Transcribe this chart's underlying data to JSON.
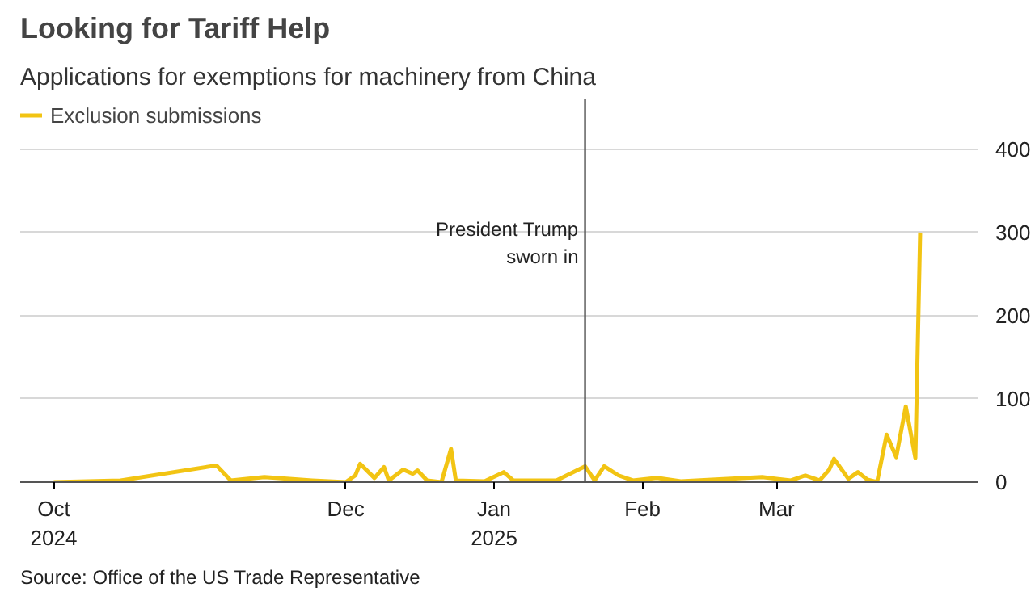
{
  "chart_data": {
    "type": "line",
    "title": "Looking for Tariff Help",
    "subtitle": "Applications for exemptions for machinery from China",
    "x": [
      "2024-10-01",
      "2024-10-15",
      "2024-11-04",
      "2024-11-07",
      "2024-11-14",
      "2024-11-24",
      "2024-12-01",
      "2024-12-03",
      "2024-12-04",
      "2024-12-07",
      "2024-12-09",
      "2024-12-10",
      "2024-12-13",
      "2024-12-15",
      "2024-12-16",
      "2024-12-18",
      "2024-12-21",
      "2024-12-23",
      "2024-12-24",
      "2024-12-30",
      "2025-01-03",
      "2025-01-05",
      "2025-01-14",
      "2025-01-20",
      "2025-01-22",
      "2025-01-24",
      "2025-01-27",
      "2025-01-30",
      "2025-02-04",
      "2025-02-09",
      "2025-02-26",
      "2025-03-01",
      "2025-03-04",
      "2025-03-07",
      "2025-03-10",
      "2025-03-12",
      "2025-03-13",
      "2025-03-16",
      "2025-03-18",
      "2025-03-20",
      "2025-03-22",
      "2025-03-24",
      "2025-03-26",
      "2025-03-28",
      "2025-03-30",
      "2025-03-31"
    ],
    "series": [
      {
        "name": "Exclusion submissions",
        "color": "#f2c413",
        "values": [
          0,
          2,
          20,
          2,
          6,
          2,
          0,
          8,
          22,
          5,
          18,
          2,
          15,
          10,
          14,
          2,
          0,
          40,
          2,
          1,
          12,
          2,
          2,
          19,
          2,
          19,
          8,
          2,
          5,
          1,
          6,
          4,
          2,
          8,
          2,
          15,
          28,
          4,
          12,
          3,
          0,
          57,
          30,
          91,
          29,
          300
        ]
      }
    ],
    "xlim": [
      "2024-09-24",
      "2025-04-12"
    ],
    "xticks": [
      {
        "value": "2024-10-01",
        "label": "Oct\n2024"
      },
      {
        "value": "2024-12-01",
        "label": "Dec"
      },
      {
        "value": "2025-01-01",
        "label": "Jan\n2025"
      },
      {
        "value": "2025-02-01",
        "label": "Feb"
      },
      {
        "value": "2025-03-01",
        "label": "Mar"
      }
    ],
    "ylim": [
      0,
      460
    ],
    "yticks": [
      0,
      100,
      200,
      300,
      400
    ],
    "grid": "y",
    "legend": "top left",
    "ref_lines": [
      {
        "axis": "x",
        "value": "2025-01-20",
        "label": "President Trump\nsworn in",
        "color": "#555555"
      }
    ],
    "annotations": [
      "Source: Office of the US Trade Representative"
    ]
  }
}
